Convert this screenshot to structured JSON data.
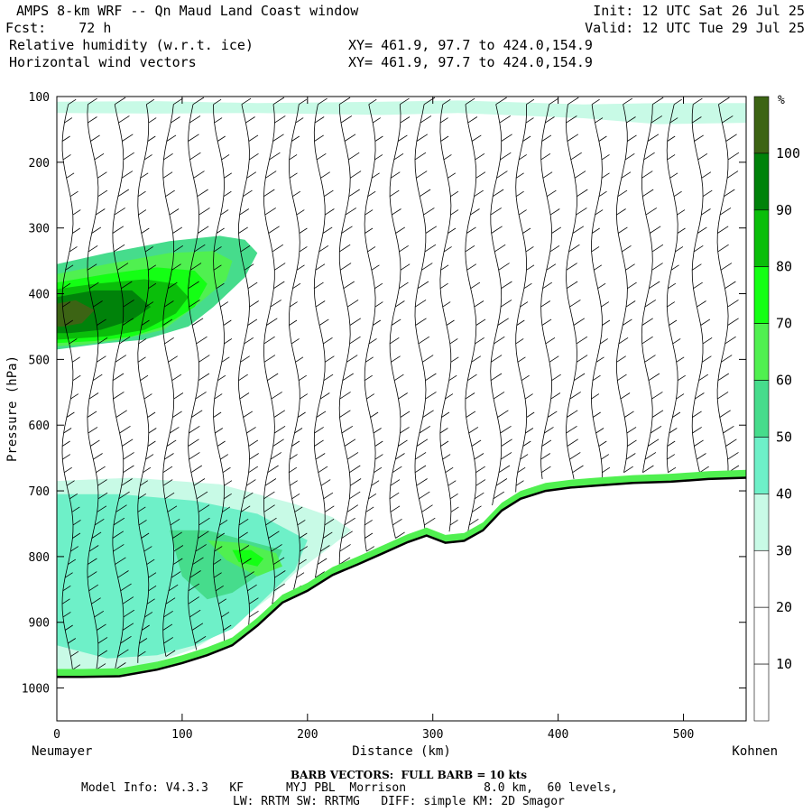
{
  "header": {
    "title": "AMPS 8-km WRF -- Qn Maud Land Coast window",
    "init_line": "Init: 12 UTC Sat 26 Jul 25",
    "fcst_line": "Fcst:    72 h",
    "valid_line": "Valid: 12 UTC Tue 29 Jul 25",
    "field1": "Relative humidity (w.r.t. ice)",
    "field1_xy": "XY= 461.9, 97.7 to 424.0,154.9",
    "field2": "Horizontal wind vectors",
    "field2_xy": "XY= 461.9, 97.7 to 424.0,154.9"
  },
  "footer": {
    "barb_note": "BARB VECTORS:  FULL BARB = 10 kts",
    "model_info_1": "Model Info: V4.3.3   KF      MYJ PBL  Morrison           8.0 km,  60 levels,",
    "model_info_2": "LW: RRTM SW: RRTMG   DIFF: simple KM: 2D Smagor"
  },
  "colors": {
    "rh_10_20": "#ffffff",
    "rh_20_30": "#ffffff",
    "rh_30_40": "#c8fae6",
    "rh_40_50": "#6ef0c8",
    "rh_50_60": "#46dc8c",
    "rh_60_70": "#50f050",
    "rh_70_80": "#14ff14",
    "rh_80_90": "#0abe0a",
    "rh_90_100": "#00820a",
    "rh_100": "#3c6414"
  },
  "chart_data": {
    "type": "cross-section",
    "xlabel": "Distance (km)",
    "ylabel": "Pressure (hPa)",
    "xlim": [
      0,
      550
    ],
    "ylim": [
      1050,
      100
    ],
    "x_ticks": [
      0,
      100,
      200,
      300,
      400,
      500
    ],
    "y_ticks": [
      100,
      200,
      300,
      400,
      500,
      600,
      700,
      800,
      900,
      1000
    ],
    "left_endpoint": "Neumayer",
    "right_endpoint": "Kohnen",
    "colorbar": {
      "unit": "%",
      "levels": [
        0,
        10,
        20,
        30,
        40,
        50,
        60,
        70,
        80,
        90,
        100
      ],
      "tick_labels": [
        "10",
        "20",
        "30",
        "40",
        "50",
        "60",
        "70",
        "80",
        "90",
        "100"
      ]
    },
    "terrain_surface_pressure": {
      "x": [
        0,
        20,
        50,
        80,
        100,
        120,
        140,
        160,
        180,
        200,
        220,
        240,
        260,
        280,
        295,
        310,
        325,
        340,
        355,
        370,
        390,
        410,
        430,
        460,
        490,
        520,
        550
      ],
      "p": [
        983,
        983,
        982,
        972,
        962,
        950,
        935,
        905,
        870,
        852,
        828,
        812,
        795,
        778,
        768,
        779,
        776,
        760,
        730,
        712,
        700,
        695,
        692,
        688,
        686,
        682,
        680
      ]
    },
    "rh_regions": [
      {
        "range": "30-40",
        "x": [
          0,
          80,
          160,
          260,
          320,
          420,
          480,
          550,
          550,
          480,
          420,
          320,
          260,
          160,
          80,
          0
        ],
        "p": [
          108,
          107,
          110,
          108,
          106,
          112,
          110,
          110,
          140,
          142,
          133,
          125,
          128,
          125,
          126,
          125
        ]
      },
      {
        "range": "30-40",
        "x": [
          0,
          60,
          130,
          190,
          220,
          235,
          215,
          190,
          170,
          140,
          110,
          80,
          40,
          0
        ],
        "p": [
          685,
          680,
          690,
          720,
          740,
          760,
          790,
          825,
          862,
          905,
          940,
          960,
          980,
          980
        ]
      },
      {
        "range": "40-50",
        "x": [
          0,
          50,
          110,
          160,
          200,
          190,
          160,
          140,
          110,
          80,
          40,
          0
        ],
        "p": [
          705,
          705,
          715,
          735,
          775,
          820,
          875,
          910,
          935,
          950,
          955,
          935
        ]
      },
      {
        "range": "50-60",
        "x": [
          90,
          120,
          150,
          180,
          175,
          140,
          120,
          100
        ],
        "p": [
          760,
          760,
          775,
          790,
          810,
          855,
          865,
          830
        ]
      },
      {
        "range": "60-70",
        "x": [
          120,
          150,
          175,
          180,
          160,
          135
        ],
        "p": [
          775,
          780,
          795,
          815,
          830,
          805
        ]
      },
      {
        "range": "70-80",
        "x": [
          140,
          155,
          165,
          160,
          145
        ],
        "p": [
          790,
          790,
          803,
          815,
          808
        ]
      },
      {
        "range": "50-60",
        "x": [
          0,
          40,
          90,
          130,
          150,
          160,
          150,
          125,
          105,
          70,
          40,
          0
        ],
        "p": [
          355,
          338,
          320,
          312,
          318,
          338,
          375,
          420,
          450,
          470,
          475,
          485
        ]
      },
      {
        "range": "60-70",
        "x": [
          0,
          40,
          90,
          125,
          140,
          135,
          110,
          85,
          50,
          20,
          0
        ],
        "p": [
          370,
          355,
          338,
          335,
          350,
          380,
          420,
          455,
          470,
          478,
          480
        ]
      },
      {
        "range": "70-80",
        "x": [
          0,
          40,
          80,
          110,
          120,
          110,
          85,
          60,
          30,
          0
        ],
        "p": [
          383,
          370,
          360,
          365,
          385,
          420,
          450,
          465,
          472,
          475
        ]
      },
      {
        "range": "80-90",
        "x": [
          0,
          30,
          70,
          95,
          105,
          95,
          70,
          40,
          0
        ],
        "p": [
          393,
          385,
          378,
          385,
          405,
          430,
          455,
          465,
          470
        ]
      },
      {
        "range": "90-100",
        "x": [
          0,
          30,
          60,
          75,
          60,
          35,
          10,
          0
        ],
        "p": [
          405,
          395,
          395,
          420,
          440,
          455,
          460,
          460
        ]
      },
      {
        "range": "100",
        "x": [
          0,
          15,
          30,
          20,
          5,
          0
        ],
        "p": [
          415,
          410,
          425,
          445,
          450,
          450
        ]
      }
    ],
    "barb_note": "FULL BARB = 10 kts"
  }
}
